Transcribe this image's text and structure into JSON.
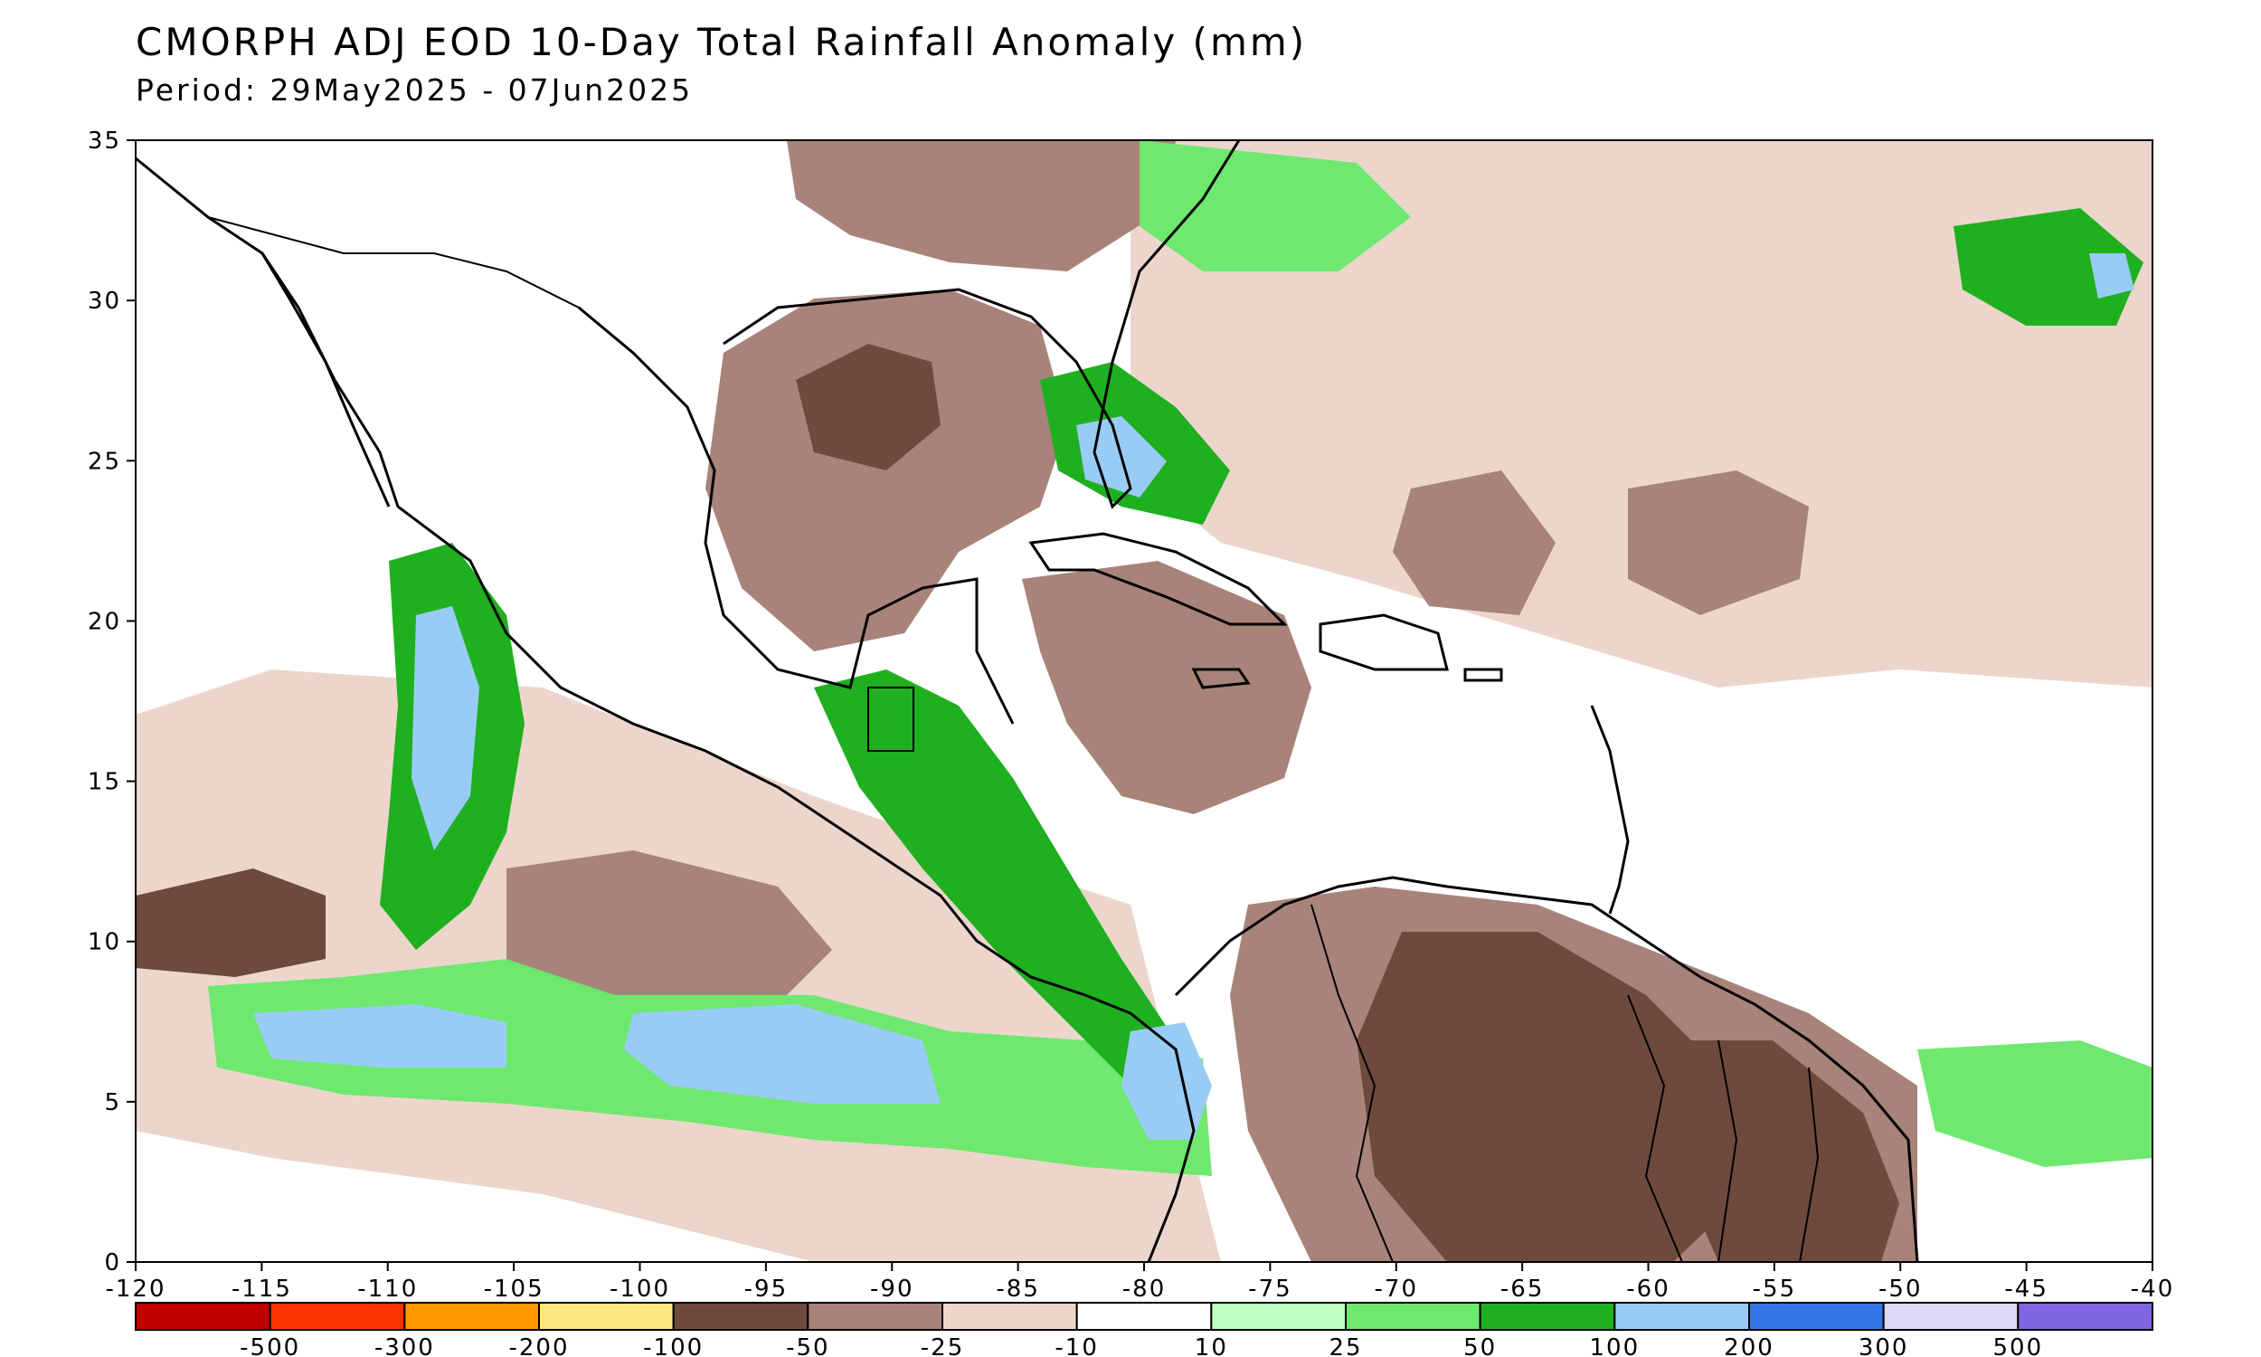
{
  "header": {
    "title": "CMORPH ADJ EOD 10-Day Total Rainfall Anomaly (mm)",
    "period": "Period: 29May2025 - 07Jun2025"
  },
  "axes": {
    "lon_ticks": [
      "-120",
      "-115",
      "-110",
      "-105",
      "-100",
      "-95",
      "-90",
      "-85",
      "-80",
      "-75",
      "-70",
      "-65",
      "-60",
      "-55",
      "-50",
      "-45",
      "-40"
    ],
    "lat_ticks": [
      "0",
      "5",
      "10",
      "15",
      "20",
      "25",
      "30",
      "35"
    ],
    "lon_range": [
      -120,
      -40
    ],
    "lat_range": [
      0,
      35
    ]
  },
  "legend": {
    "colors": [
      "#c00000",
      "#ff3300",
      "#ff9900",
      "#ffe680",
      "#6e4a3e",
      "#a8837a",
      "#ecd6cc",
      "#ffffff",
      "#bfffbf",
      "#6ee86e",
      "#1fb01f",
      "#99ccf5",
      "#3377e6",
      "#dcd8fa",
      "#8066e0"
    ],
    "labels": [
      "-500",
      "-300",
      "-200",
      "-100",
      "-50",
      "-25",
      "-10",
      "10",
      "25",
      "50",
      "100",
      "200",
      "300",
      "500"
    ]
  },
  "anomaly_regions": [
    {
      "label": "wet-central-america",
      "color": "#1fb01f"
    },
    {
      "label": "wet-east-pacific-itcz",
      "color": "#6ee86e"
    },
    {
      "label": "dry-gulf-of-mexico",
      "color": "#a8837a"
    },
    {
      "label": "dry-caribbean",
      "color": "#a8837a"
    },
    {
      "label": "dry-central-atlantic",
      "color": "#a8837a"
    },
    {
      "label": "dry-northern-south-america",
      "color": "#6e4a3e"
    },
    {
      "label": "wet-florida",
      "color": "#1fb01f"
    }
  ]
}
